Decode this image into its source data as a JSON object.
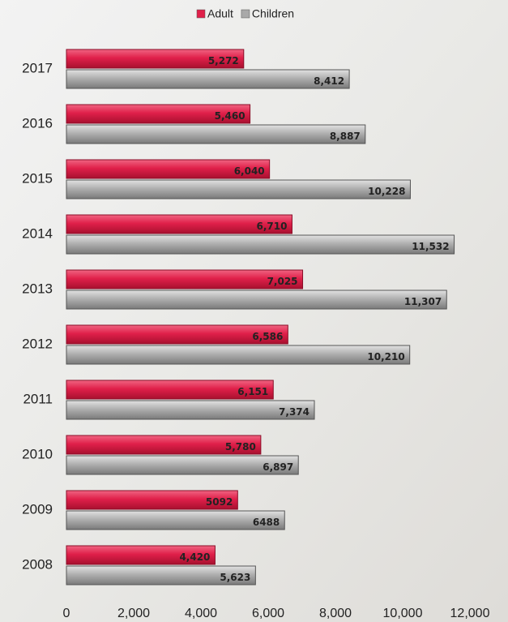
{
  "chart_data": {
    "type": "hbar",
    "categories": [
      "2017",
      "2016",
      "2015",
      "2014",
      "2013",
      "2012",
      "2011",
      "2010",
      "2009",
      "2008"
    ],
    "series": [
      {
        "name": "Adult",
        "color": "#e0204a",
        "values": [
          5272,
          5460,
          6040,
          6710,
          7025,
          6586,
          6151,
          5780,
          5092,
          4420
        ],
        "value_labels": [
          "5,272",
          "5,460",
          "6,040",
          "6,710",
          "7,025",
          "6,586",
          "6,151",
          "5,780",
          "5092",
          "4,420"
        ]
      },
      {
        "name": "Children",
        "color": "#a9a9a9",
        "values": [
          8412,
          8887,
          10228,
          11532,
          11307,
          10210,
          7374,
          6897,
          6488,
          5623
        ],
        "value_labels": [
          "8,412",
          "8,887",
          "10,228",
          "11,532",
          "11,307",
          "10,210",
          "7,374",
          "6,897",
          "6488",
          "5,623"
        ]
      }
    ],
    "xlim": [
      0,
      12000
    ],
    "xticks": [
      0,
      {
        "value": 2000,
        "label": "2,000"
      },
      {
        "value": 4000,
        "label": "4,000"
      },
      {
        "value": 6000,
        "label": "6,000"
      },
      {
        "value": 8000,
        "label": "8,000"
      },
      {
        "value": 10000,
        "label": "10,000"
      },
      {
        "value": 12000,
        "label": "12,000"
      }
    ],
    "legend": "top"
  }
}
